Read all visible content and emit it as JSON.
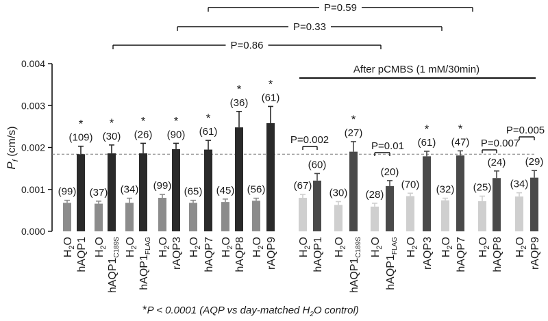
{
  "chart_data": {
    "type": "bar",
    "ylabel_main": "P",
    "ylabel_sub": "f",
    "ylabel_unit": " (cm/s)",
    "ylim": [
      0,
      0.004
    ],
    "yticks": [
      "0.000",
      "0.001",
      "0.002",
      "0.003",
      "0.004"
    ],
    "reference_line": 0.00184,
    "left_group": [
      {
        "cat": "H2O",
        "value": 0.00068,
        "err": 6e-05,
        "n": "(99)",
        "star": false,
        "color": "#8c8c8c"
      },
      {
        "cat": "hAQP1",
        "value": 0.00184,
        "err": 0.00019,
        "n": "(109)",
        "star": true,
        "color": "#2a2a2a"
      },
      {
        "cat": "H2O",
        "value": 0.00066,
        "err": 6e-05,
        "n": "(37)",
        "star": false,
        "color": "#8c8c8c"
      },
      {
        "cat": "hAQP1",
        "sub": "C189S",
        "value": 0.00186,
        "err": 0.0002,
        "n": "(30)",
        "star": true,
        "color": "#2a2a2a"
      },
      {
        "cat": "H2O",
        "value": 0.00068,
        "err": 0.00011,
        "n": "(34)",
        "star": false,
        "color": "#8c8c8c"
      },
      {
        "cat": "hAQP1",
        "sub": "FLAG",
        "value": 0.00186,
        "err": 0.00024,
        "n": "(26)",
        "star": true,
        "color": "#2a2a2a"
      },
      {
        "cat": "H2O",
        "value": 0.0008,
        "err": 8e-05,
        "n": "(99)",
        "star": false,
        "color": "#8c8c8c"
      },
      {
        "cat": "rAQP3",
        "value": 0.00196,
        "err": 0.00014,
        "n": "(90)",
        "star": true,
        "color": "#2a2a2a"
      },
      {
        "cat": "H2O",
        "value": 0.00068,
        "err": 6e-05,
        "n": "(65)",
        "star": false,
        "color": "#8c8c8c"
      },
      {
        "cat": "hAQP7",
        "value": 0.00195,
        "err": 0.00022,
        "n": "(61)",
        "star": true,
        "color": "#2a2a2a"
      },
      {
        "cat": "H2O",
        "value": 0.0007,
        "err": 7e-05,
        "n": "(45)",
        "star": false,
        "color": "#8c8c8c"
      },
      {
        "cat": "hAQP8",
        "value": 0.00248,
        "err": 0.00038,
        "n": "(36)",
        "star": true,
        "color": "#2a2a2a"
      },
      {
        "cat": "H2O",
        "value": 0.00073,
        "err": 6e-05,
        "n": "(56)",
        "star": false,
        "color": "#8c8c8c"
      },
      {
        "cat": "rAQP9",
        "value": 0.00258,
        "err": 0.0004,
        "n": "(61)",
        "star": true,
        "color": "#2a2a2a"
      }
    ],
    "right_group_title": "After pCMBS (1 mM/30min)",
    "right_group": [
      {
        "cat": "H2O",
        "value": 0.0008,
        "err": 8e-05,
        "n": "(67)",
        "star": false,
        "color": "#cfcfcf"
      },
      {
        "cat": "hAQP1",
        "value": 0.00121,
        "err": 0.00017,
        "n": "(60)",
        "star": false,
        "color": "#4a4a4a"
      },
      {
        "cat": "H2O",
        "value": 0.00063,
        "err": 8e-05,
        "n": "(30)",
        "star": false,
        "color": "#cfcfcf"
      },
      {
        "cat": "hAQP1",
        "sub": "C189S",
        "value": 0.0019,
        "err": 0.00024,
        "n": "(27)",
        "star": true,
        "color": "#4a4a4a"
      },
      {
        "cat": "H2O",
        "value": 0.00059,
        "err": 8e-05,
        "n": "(28)",
        "star": false,
        "color": "#cfcfcf"
      },
      {
        "cat": "hAQP1",
        "sub": "FLAG",
        "value": 0.00108,
        "err": 0.00013,
        "n": "(20)",
        "star": false,
        "color": "#4a4a4a"
      },
      {
        "cat": "H2O",
        "value": 0.00084,
        "err": 7e-05,
        "n": "(70)",
        "star": false,
        "color": "#cfcfcf"
      },
      {
        "cat": "rAQP3",
        "value": 0.00179,
        "err": 0.00012,
        "n": "(61)",
        "star": true,
        "color": "#4a4a4a"
      },
      {
        "cat": "H2O",
        "value": 0.00074,
        "err": 5e-05,
        "n": "(32)",
        "star": false,
        "color": "#cfcfcf"
      },
      {
        "cat": "hAQP7",
        "value": 0.00181,
        "err": 0.00011,
        "n": "(47)",
        "star": true,
        "color": "#4a4a4a"
      },
      {
        "cat": "H2O",
        "value": 0.00072,
        "err": 0.00012,
        "n": "(25)",
        "star": false,
        "color": "#cfcfcf"
      },
      {
        "cat": "hAQP8",
        "value": 0.00127,
        "err": 0.00017,
        "n": "(24)",
        "star": false,
        "color": "#4a4a4a"
      },
      {
        "cat": "H2O",
        "value": 0.00083,
        "err": 9e-05,
        "n": "(34)",
        "star": false,
        "color": "#cfcfcf"
      },
      {
        "cat": "rAQP9",
        "value": 0.00128,
        "err": 0.00017,
        "n": "(29)",
        "star": false,
        "color": "#4a4a4a"
      }
    ],
    "top_comparisons": [
      {
        "label": "P=0.59"
      },
      {
        "label": "P=0.33"
      },
      {
        "label": "P=0.86"
      }
    ],
    "pair_comparisons": [
      {
        "label": "P=0.002"
      },
      {
        "label": "P=0.01"
      },
      {
        "label": "P=0.007"
      },
      {
        "label": "P=0.005"
      }
    ],
    "footnote_star": "*",
    "footnote_p": "P",
    "footnote_rest": " < 0.0001 (AQP vs day-matched H",
    "footnote_sub": "2",
    "footnote_tail": "O control)"
  }
}
